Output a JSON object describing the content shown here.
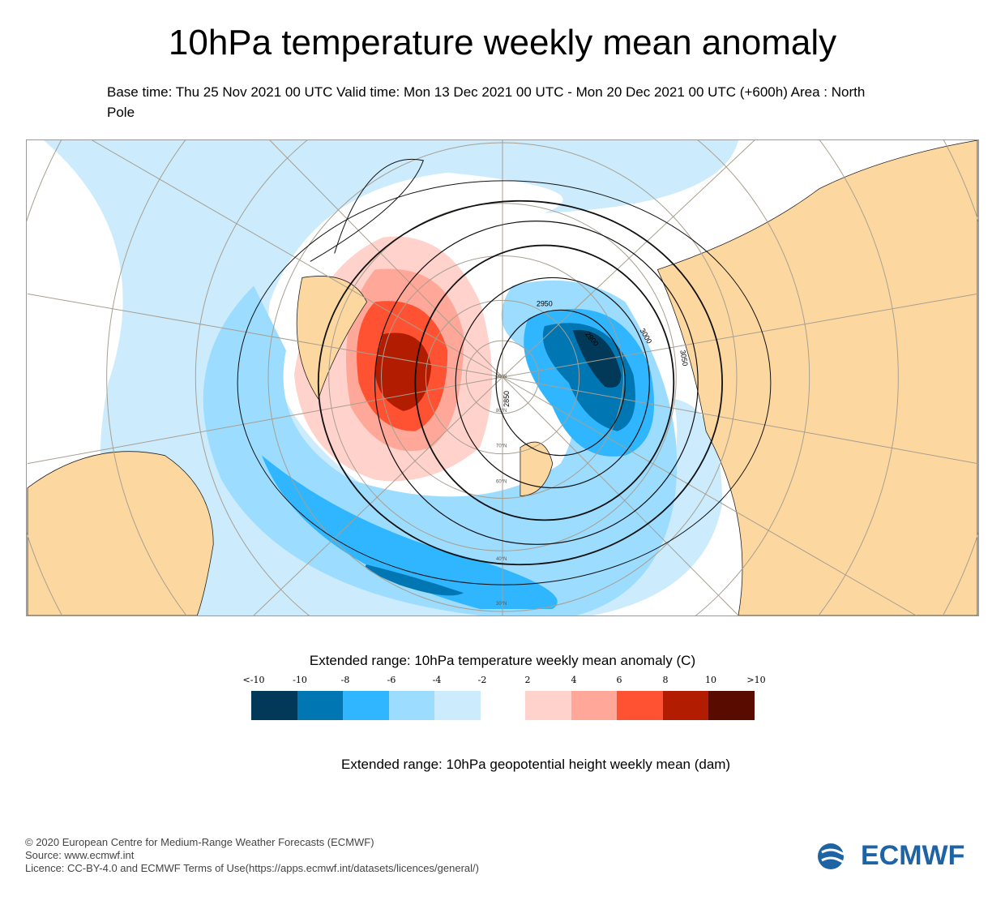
{
  "title": "10hPa temperature weekly mean anomaly",
  "subtitle": "Base time: Thu 25 Nov 2021 00 UTC Valid time: Mon 13 Dec 2021 00 UTC - Mon 20 Dec 2021 00 UTC (+600h) Area : North Pole",
  "map": {
    "contour_labels": [
      "2850",
      "2900",
      "2950",
      "3000",
      "3050"
    ],
    "latitude_labels": [
      "90°N",
      "80°N",
      "70°N",
      "60°N",
      "40°N",
      "30°N"
    ]
  },
  "legend": {
    "title": "Extended range: 10hPa temperature weekly mean anomaly (C)",
    "ticks": [
      "<-10",
      "-10",
      "-8",
      "-6",
      "-4",
      "-2",
      "2",
      "4",
      "6",
      "8",
      "10",
      ">10"
    ],
    "colors": [
      "#023858",
      "#0077b3",
      "#30b6ff",
      "#9cdcff",
      "#ccecfd",
      "#ffd2cc",
      "#ffa899",
      "#ff5232",
      "#b21c00",
      "#5a0b00"
    ]
  },
  "contour_title": "Extended range: 10hPa geopotential height weekly mean (dam)",
  "footer": {
    "copyright": "© 2020 European Centre for Medium-Range Weather Forecasts (ECMWF)",
    "source": "Source: www.ecmwf.int",
    "licence": "Licence: CC-BY-4.0 and ECMWF Terms of Use(https://apps.ecmwf.int/datasets/licences/general/)"
  },
  "logo": "ECMWF"
}
